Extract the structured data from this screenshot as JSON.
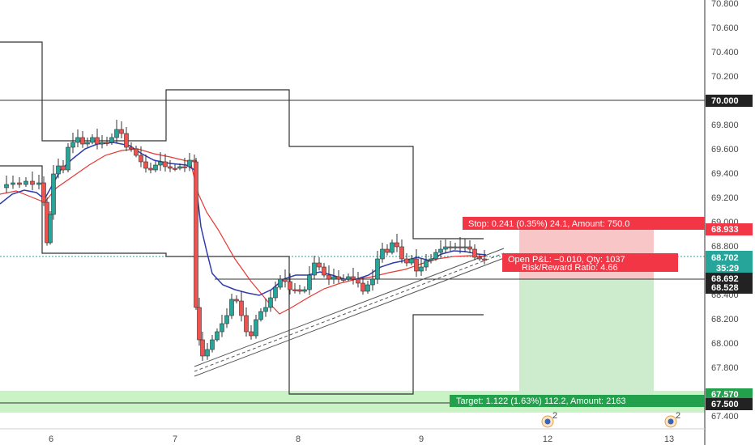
{
  "chart_data": {
    "type": "candlestick",
    "title": "",
    "y_ticks": [
      "67.400",
      "67.600",
      "67.800",
      "68.000",
      "68.200",
      "68.400",
      "68.600",
      "68.800",
      "69.000",
      "69.200",
      "69.400",
      "69.600",
      "69.800",
      "70.000",
      "70.200",
      "70.400",
      "70.600",
      "70.800"
    ],
    "x_ticks": [
      "6",
      "7",
      "8",
      "9",
      "12",
      "13"
    ],
    "ylim": [
      67.32,
      70.85
    ],
    "price_labels": {
      "level_70": "70.000",
      "stop": "68.933",
      "current": "68.702",
      "countdown": "35:29",
      "level_68692": "68.692",
      "level_68528": "68.528",
      "target": "67.570",
      "level_675": "67.500"
    },
    "position": {
      "stop_text": "Stop: 0.241 (0.35%) 24.1, Amount: 750.0",
      "pnl_text": "Open P&L: −0.010, Qty: 1037",
      "rr_text": "Risk/Reward Ratio: 4.66",
      "target_text": "Target: 1.122 (1.63%) 112.2, Amount: 2163",
      "entry": 68.692,
      "stop": 68.933,
      "target": 67.57
    },
    "horizontal_levels": [
      70.0,
      68.692,
      67.5
    ],
    "support_zone": [
      67.44,
      67.62
    ],
    "colors": {
      "up": "#26a69a",
      "down": "#ef5350",
      "ma_fast": "#2f3ab0",
      "ma_slow": "#e53935",
      "stop_zone": "#f8c6c6",
      "target_zone": "#cdeccd",
      "support_zone": "#c9f3c4"
    },
    "event_icons": [
      "earnings-badge-2",
      "earnings-badge-2"
    ]
  }
}
